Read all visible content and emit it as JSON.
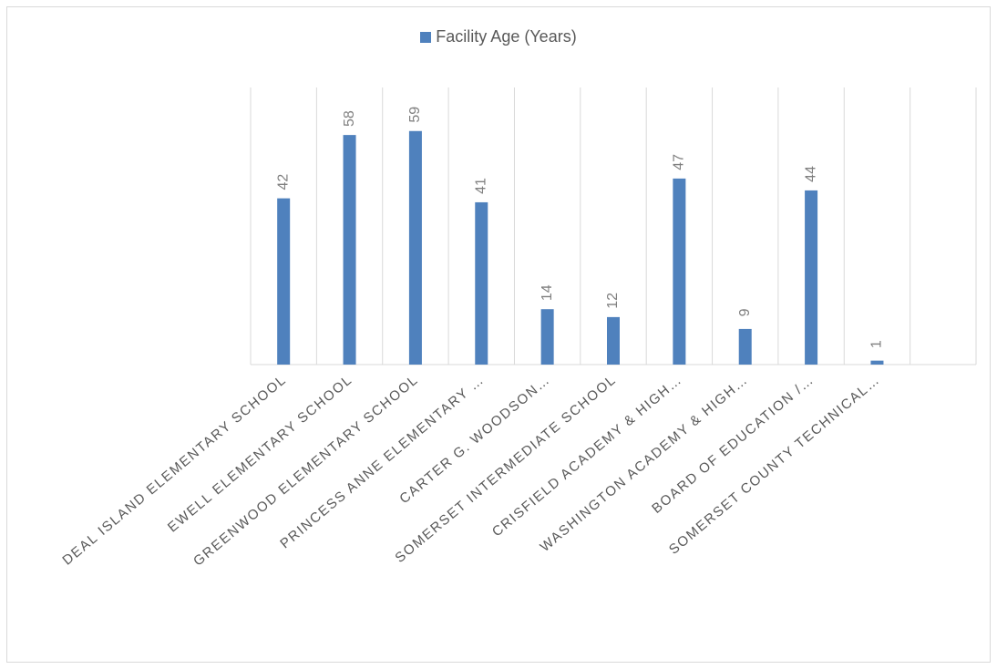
{
  "chart_data": {
    "type": "bar",
    "categories": [
      "DEAL ISLAND ELEMENTARY SCHOOL",
      "EWELL ELEMENTARY SCHOOL",
      "GREENWOOD ELEMENTARY SCHOOL",
      "PRINCESS ANNE ELEMENTARY …",
      "CARTER G. WOODSON…",
      "SOMERSET INTERMEDIATE SCHOOL",
      "CRISFIELD ACADEMY & HIGH…",
      "WASHINGTON ACADEMY & HIGH…",
      "BOARD OF EDUCATION /…",
      "SOMERSET COUNTY TECHNICAL…",
      ""
    ],
    "series": [
      {
        "name": "Facility Age (Years)",
        "values": [
          42,
          58,
          59,
          41,
          14,
          12,
          47,
          9,
          44,
          1,
          null
        ],
        "data_labels": [
          "42",
          "58",
          "59",
          "41",
          "14",
          "12",
          "47",
          "9",
          "44",
          "1",
          ""
        ]
      }
    ],
    "ylim": [
      0,
      70
    ],
    "grid": true,
    "legend": "top",
    "colors": {
      "bar": "#4f81bd",
      "grid": "#d9d9d9",
      "label": "#7f7f7f",
      "axis_text": "#595959"
    }
  }
}
